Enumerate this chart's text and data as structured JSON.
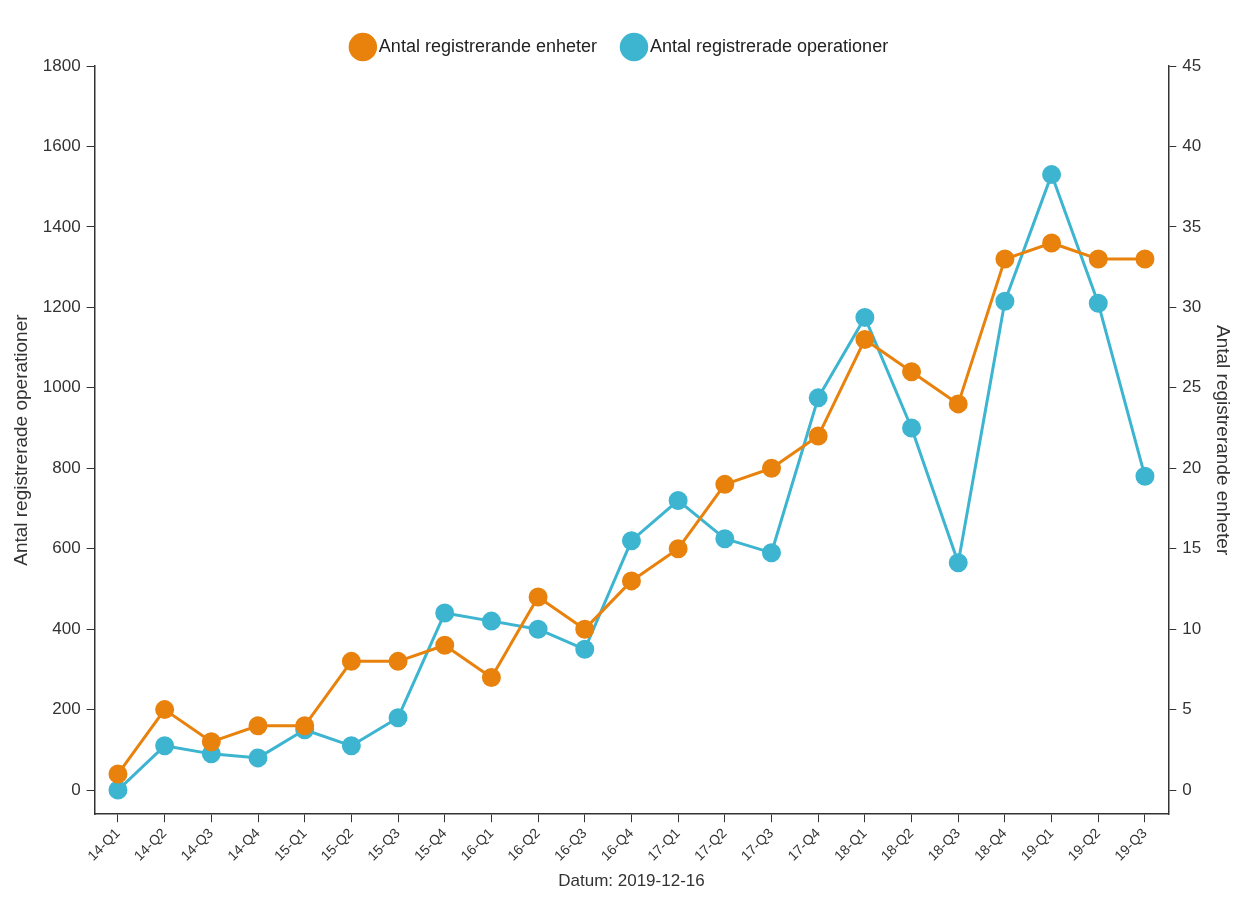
{
  "chart_data": {
    "type": "line",
    "xlabel": "Datum: 2019-12-16",
    "ylabel": "Antal registrerade operationer",
    "y2label": "Antal registrerande enheter",
    "categories": [
      "14-Q1",
      "14-Q2",
      "14-Q3",
      "14-Q4",
      "15-Q1",
      "15-Q2",
      "15-Q3",
      "15-Q4",
      "16-Q1",
      "16-Q2",
      "16-Q3",
      "16-Q4",
      "17-Q1",
      "17-Q2",
      "17-Q3",
      "17-Q4",
      "18-Q1",
      "18-Q2",
      "18-Q3",
      "18-Q4",
      "19-Q1",
      "19-Q2",
      "19-Q3"
    ],
    "series": [
      {
        "name": "Antal registrerade operationer",
        "color": "#3db5d0",
        "values": [
          0,
          110,
          90,
          80,
          150,
          110,
          180,
          440,
          420,
          400,
          350,
          620,
          720,
          625,
          590,
          975,
          1175,
          900,
          565,
          1215,
          1530,
          1210,
          780
        ]
      },
      {
        "name": "Antal registrerande enheter",
        "color": "#e8820c",
        "axis": "y2",
        "values": [
          1,
          5,
          3,
          4,
          4,
          8,
          8,
          9,
          7,
          12,
          10,
          13,
          15,
          19,
          20,
          22,
          28,
          26,
          24,
          33,
          34,
          33,
          33
        ]
      }
    ],
    "ylim": [
      -60,
      1800
    ],
    "yticks": [
      0,
      200,
      400,
      600,
      800,
      1000,
      1200,
      1400,
      1600,
      1800
    ],
    "y2lim": [
      -1.5,
      45
    ],
    "y2ticks": [
      0,
      5,
      10,
      15,
      20,
      25,
      30,
      35,
      40,
      45
    ],
    "grid": false,
    "legend": "top",
    "marker": "circle",
    "line_style": "solid"
  }
}
